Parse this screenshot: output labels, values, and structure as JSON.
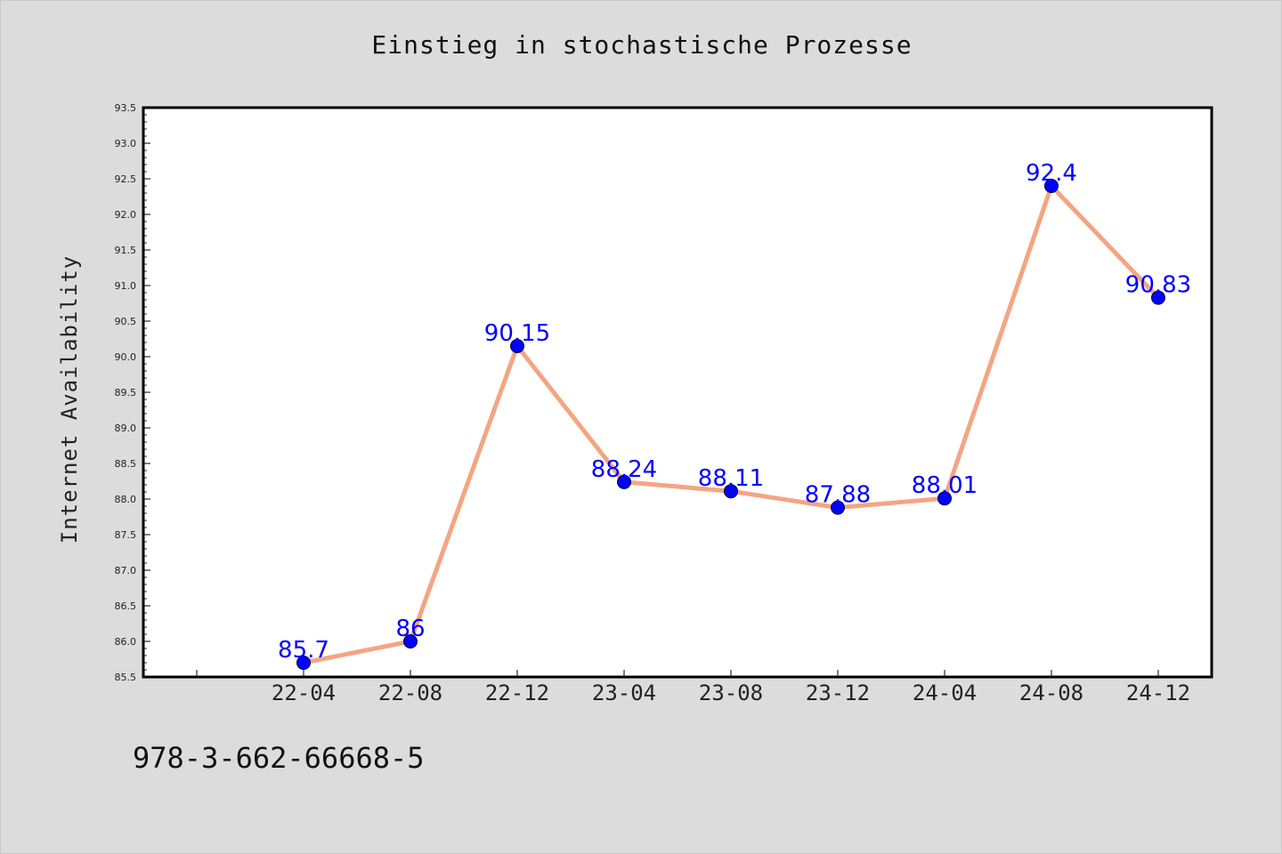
{
  "chart_data": {
    "type": "line",
    "title": "Einstieg in stochastische Prozesse",
    "xlabel": "",
    "ylabel": "Internet Availability",
    "categories": [
      "22-04",
      "22-08",
      "22-12",
      "23-04",
      "23-08",
      "23-12",
      "24-04",
      "24-08",
      "24-12"
    ],
    "values": [
      85.7,
      86,
      90.15,
      88.24,
      88.11,
      87.88,
      88.01,
      92.4,
      90.83
    ],
    "data_labels": [
      "85.7",
      "86",
      "90.15",
      "88.24",
      "88.11",
      "87.88",
      "88.01",
      "92.4",
      "90.83"
    ],
    "ylim": [
      85.5,
      93.5
    ],
    "y_ticks": [
      "85.5",
      "86.0",
      "86.5",
      "87.0",
      "87.5",
      "88.0",
      "88.5",
      "89.0",
      "89.5",
      "90.0",
      "90.5",
      "91.0",
      "91.5",
      "92.0",
      "92.5",
      "93.0",
      "93.5"
    ],
    "grid": false,
    "legend": "none",
    "colors": {
      "line": "#f4a582",
      "marker": "#0000ff",
      "data_label": "#0000ff",
      "plot_background": "#ffffff",
      "page_background": "#dcdcdc"
    }
  },
  "footer": {
    "isbn": "978-3-662-66668-5"
  }
}
